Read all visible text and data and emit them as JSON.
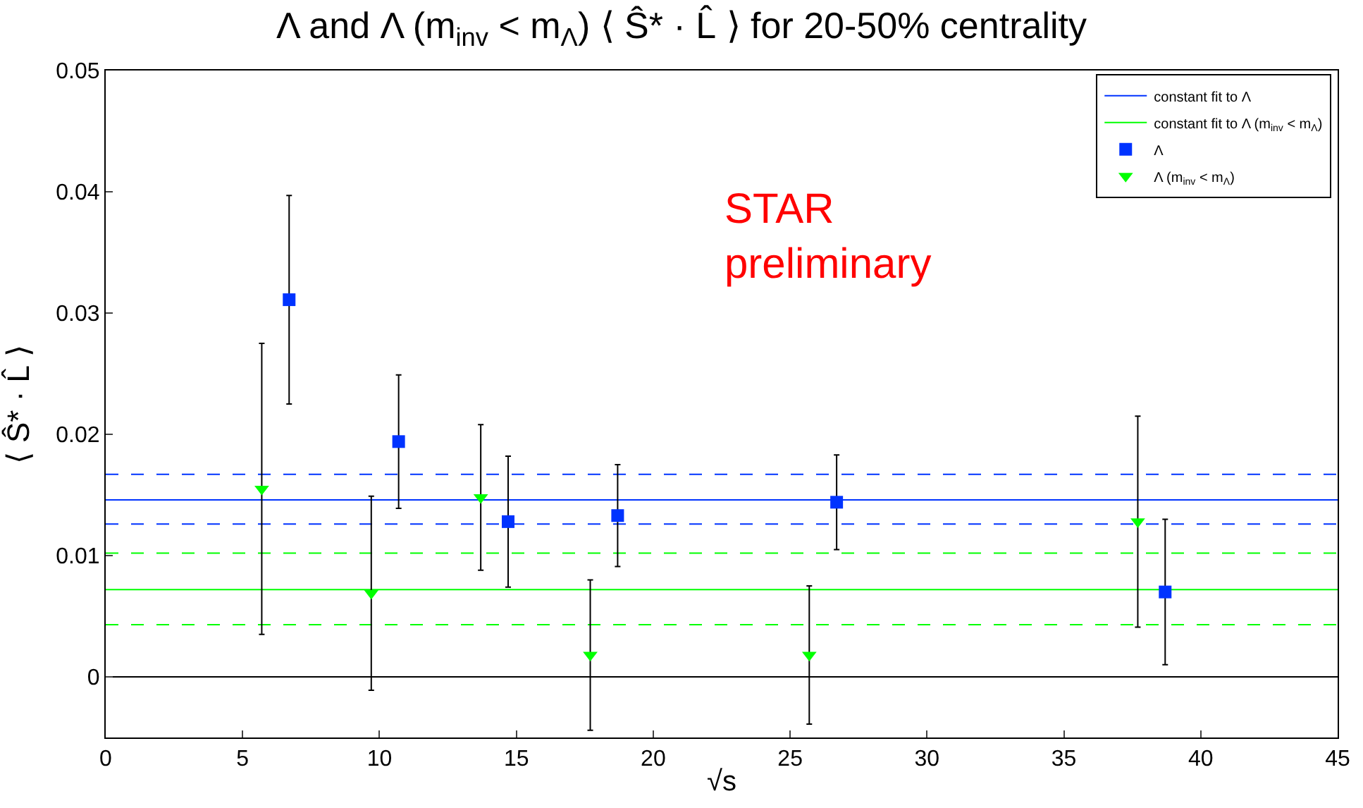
{
  "chart_data": {
    "type": "scatter",
    "title": "Λ and Λ (m$_{inv}$ < m$_{Λ}$) ⟨ Ŝ* · L̂ ⟩ for 20-50% centrality",
    "xlabel": "√s",
    "ylabel": "⟨ Ŝ* · L̂ ⟩",
    "xlim": [
      0,
      45
    ],
    "xticks": [
      0,
      5,
      10,
      15,
      20,
      25,
      30,
      35,
      40,
      45
    ],
    "ylim": [
      -0.005,
      0.05
    ],
    "yticks": [
      0,
      0.01,
      0.02,
      0.03,
      0.04,
      0.05
    ],
    "grid": false,
    "legend": "top right",
    "series": [
      {
        "name": "Λ",
        "marker": "square",
        "color": "#0033ff",
        "x": [
          6.7,
          10.7,
          14.7,
          18.7,
          26.7,
          38.7
        ],
        "values": [
          0.0311,
          0.0194,
          0.0128,
          0.0133,
          0.0144,
          0.007
        ],
        "errors": [
          0.0086,
          0.0055,
          0.0054,
          0.0042,
          0.0039,
          0.006
        ]
      },
      {
        "name": "Λ (m$_{inv}$ < m$_{Λ}$)",
        "marker": "triangle",
        "color": "#00ff00",
        "x": [
          5.7,
          9.7,
          13.7,
          17.7,
          25.7,
          37.7
        ],
        "values": [
          0.0155,
          0.0069,
          0.0148,
          0.0018,
          0.0018,
          0.0128
        ],
        "errors": [
          0.012,
          0.008,
          0.006,
          0.0062,
          0.0057,
          0.0087
        ]
      },
      {
        "name": "constant fit to Λ",
        "type": "line",
        "color": "#0033ff",
        "x": [
          0,
          45
        ],
        "values": [
          0.0146,
          0.0146
        ]
      },
      {
        "name": "constant fit to Λ (m$_{inv}$ < m$_{Λ}$)",
        "type": "line",
        "color": "#00ff00",
        "x": [
          0,
          45
        ],
        "values": [
          0.0072,
          0.0072
        ]
      }
    ],
    "ref_lines": [
      {
        "axis": "y",
        "value": 0,
        "color": "#000000"
      },
      {
        "axis": "y",
        "value": 0.0167,
        "color": "#0033ff",
        "line_style": "dashed"
      },
      {
        "axis": "y",
        "value": 0.0126,
        "color": "#0033ff",
        "line_style": "dashed"
      },
      {
        "axis": "y",
        "value": 0.0102,
        "color": "#00ff00",
        "line_style": "dashed"
      },
      {
        "axis": "y",
        "value": 0.0043,
        "color": "#00ff00",
        "line_style": "dashed"
      }
    ],
    "annotations": [
      "STAR\npreliminary"
    ]
  }
}
